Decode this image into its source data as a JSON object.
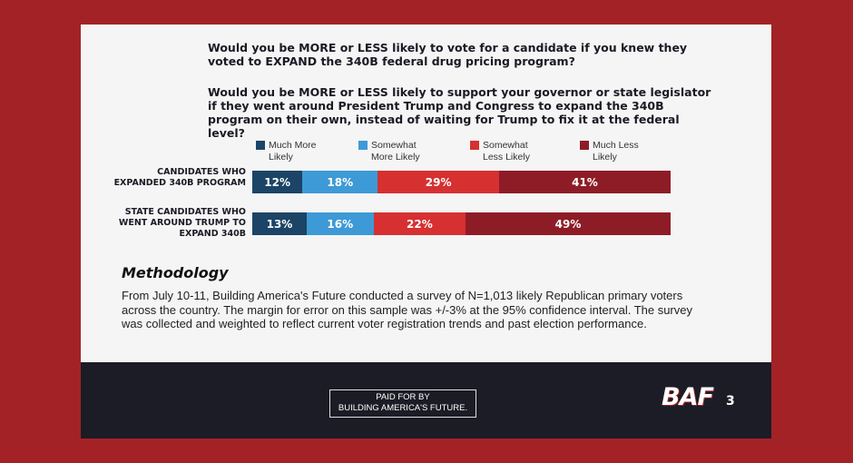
{
  "questions": {
    "q1": "Would you be MORE or LESS likely to vote for a candidate if you knew they voted to EXPAND the 340B federal drug pricing program?",
    "q2": "Would you be MORE or LESS likely to support your governor or state legislator if they went around President Trump and Congress to expand the 340B program on their own, instead of waiting for Trump to fix it at the federal level?"
  },
  "chart_data": {
    "type": "bar",
    "stacked": true,
    "orientation": "horizontal",
    "categories": [
      "CANDIDATES WHO EXPANDED 340B PROGRAM",
      "STATE CANDIDATES WHO WENT AROUND TRUMP TO EXPAND 340B"
    ],
    "series": [
      {
        "name": "Much More Likely",
        "values": [
          12,
          13
        ],
        "color": "#1b4466"
      },
      {
        "name": "Somewhat More Likely",
        "values": [
          18,
          16
        ],
        "color": "#3d9ad6"
      },
      {
        "name": "Somewhat Less Likely",
        "values": [
          29,
          22
        ],
        "color": "#d63031"
      },
      {
        "name": "Much Less Likely",
        "values": [
          41,
          49
        ],
        "color": "#8e1c26"
      }
    ],
    "data_labels": [
      [
        "12%",
        "18%",
        "29%",
        "41%"
      ],
      [
        "13%",
        "16%",
        "22%",
        "49%"
      ]
    ],
    "legend_position": "top",
    "xlim": [
      0,
      100
    ],
    "grid": false
  },
  "methodology": {
    "title": "Methodology",
    "body": "From July 10-11, Building America's Future conducted a survey of N=1,013 likely Republican primary voters across the country. The margin for error on this sample was +/-3% at the 95% confidence interval. The survey was collected and weighted to reflect current voter registration trends and past election performance."
  },
  "footer": {
    "paid_line1": "PAID FOR BY",
    "paid_line2": "BUILDING AMERICA'S FUTURE.",
    "logo": "BAF",
    "page_number": "3"
  }
}
